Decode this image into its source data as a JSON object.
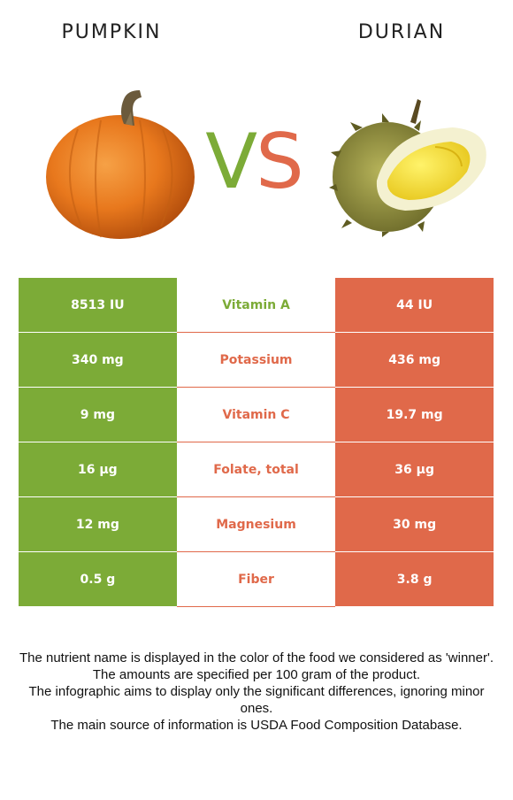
{
  "foods": {
    "left": {
      "name": "PUMPKIN"
    },
    "right": {
      "name": "DURIAN"
    }
  },
  "vs": {
    "v": "V",
    "s": "S"
  },
  "colors": {
    "left_accent": "#7cab37",
    "right_accent": "#e0694a"
  },
  "rows": [
    {
      "left": "8513 IU",
      "nutrient": "Vitamin A",
      "right": "44 IU",
      "winner": "left"
    },
    {
      "left": "340 mg",
      "nutrient": "Potassium",
      "right": "436 mg",
      "winner": "right"
    },
    {
      "left": "9 mg",
      "nutrient": "Vitamin C",
      "right": "19.7 mg",
      "winner": "right"
    },
    {
      "left": "16 µg",
      "nutrient": "Folate, total",
      "right": "36 µg",
      "winner": "right"
    },
    {
      "left": "12 mg",
      "nutrient": "Magnesium",
      "right": "30 mg",
      "winner": "right"
    },
    {
      "left": "0.5 g",
      "nutrient": "Fiber",
      "right": "3.8 g",
      "winner": "right"
    }
  ],
  "notes": [
    "The nutrient name is displayed in the color of the food we considered as 'winner'.",
    "The amounts are specified per 100 gram of the product.",
    "The infographic aims to display only the significant differences, ignoring minor ones.",
    "The main source of information is USDA Food Composition Database."
  ]
}
